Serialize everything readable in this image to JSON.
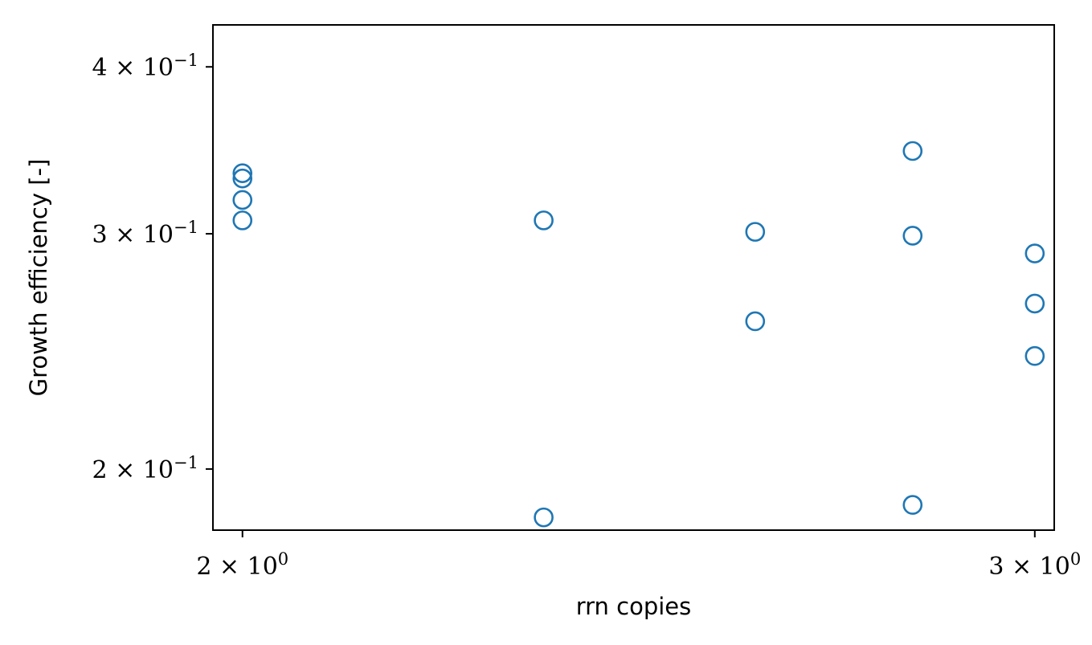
{
  "chart_data": {
    "type": "scatter",
    "title": "",
    "xlabel": "rrn copies",
    "ylabel": "Growth efficiency [-]",
    "x_scale": "log",
    "y_scale": "log",
    "xlim": [
      1.97,
      3.03
    ],
    "ylim": [
      0.18,
      0.43
    ],
    "x_ticks": [
      {
        "value": 2,
        "mantissa": "2",
        "base": "10",
        "exp": "0"
      },
      {
        "value": 3,
        "mantissa": "3",
        "base": "10",
        "exp": "0"
      }
    ],
    "y_ticks": [
      {
        "value": 0.2,
        "mantissa": "2",
        "base": "10",
        "exp": "−1"
      },
      {
        "value": 0.3,
        "mantissa": "3",
        "base": "10",
        "exp": "−1"
      },
      {
        "value": 0.4,
        "mantissa": "4",
        "base": "10",
        "exp": "−1"
      }
    ],
    "marker": {
      "shape": "open-circle",
      "color": "#1f77b4"
    },
    "grid": false,
    "series": [
      {
        "points": [
          {
            "x": 2.0,
            "y": 0.333
          },
          {
            "x": 2.0,
            "y": 0.33
          },
          {
            "x": 2.0,
            "y": 0.318
          },
          {
            "x": 2.0,
            "y": 0.307
          },
          {
            "x": 2.3333,
            "y": 0.307
          },
          {
            "x": 2.3333,
            "y": 0.184
          },
          {
            "x": 2.6,
            "y": 0.301
          },
          {
            "x": 2.6,
            "y": 0.258
          },
          {
            "x": 2.8182,
            "y": 0.346
          },
          {
            "x": 2.8182,
            "y": 0.299
          },
          {
            "x": 2.8182,
            "y": 0.188
          },
          {
            "x": 3.0,
            "y": 0.29
          },
          {
            "x": 3.0,
            "y": 0.266
          },
          {
            "x": 3.0,
            "y": 0.243
          }
        ]
      }
    ]
  }
}
